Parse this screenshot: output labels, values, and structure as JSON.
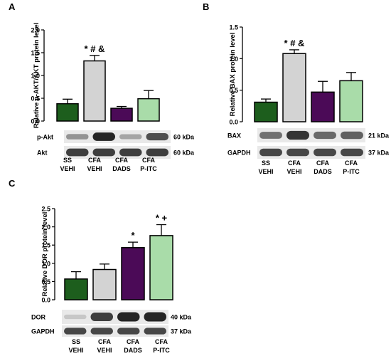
{
  "colors": {
    "ss": "#1d5e1d",
    "cfa": "#d3d3d3",
    "dads": "#4b0a57",
    "pitc": "#a9dca9",
    "blot_bg": "#e9e9e9",
    "band": "#1a1a1a"
  },
  "chart_data": [
    {
      "panel": "A",
      "type": "bar",
      "ylabel": "Relative p-AKT/AKT protein level",
      "ylim": [
        0,
        2.0
      ],
      "yticks": [
        "0.0",
        "0.5",
        "1.0",
        "1.5",
        "2.0"
      ],
      "categories": [
        {
          "line1": "SS",
          "line2": "VEHI"
        },
        {
          "line1": "CFA",
          "line2": "VEHI"
        },
        {
          "line1": "CFA",
          "line2": "DADS"
        },
        {
          "line1": "CFA",
          "line2": "P-ITC"
        }
      ],
      "values": [
        0.38,
        1.32,
        0.28,
        0.49
      ],
      "errors": [
        0.1,
        0.12,
        0.04,
        0.18
      ],
      "annotations": [
        "",
        "* # &",
        "",
        ""
      ],
      "blots": [
        {
          "label": "p-Akt",
          "kda": "60 kDa",
          "intensity": [
            0.35,
            1.0,
            0.25,
            0.75
          ]
        },
        {
          "label": "Akt",
          "kda": "60 kDa",
          "intensity": [
            0.85,
            0.85,
            0.85,
            0.85
          ]
        }
      ]
    },
    {
      "panel": "B",
      "type": "bar",
      "ylabel": "Relative BAX protein level",
      "ylim": [
        0,
        1.5
      ],
      "yticks": [
        "0.0",
        "0.5",
        "1.0",
        "1.5"
      ],
      "categories": [
        {
          "line1": "SS",
          "line2": "VEHI"
        },
        {
          "line1": "CFA",
          "line2": "VEHI"
        },
        {
          "line1": "CFA",
          "line2": "DADS"
        },
        {
          "line1": "CFA",
          "line2": "P-ITC"
        }
      ],
      "values": [
        0.31,
        1.08,
        0.47,
        0.65
      ],
      "errors": [
        0.05,
        0.06,
        0.17,
        0.13
      ],
      "annotations": [
        "",
        "* # &",
        "",
        ""
      ],
      "blots": [
        {
          "label": "BAX",
          "kda": "21 kDa",
          "intensity": [
            0.55,
            0.9,
            0.6,
            0.65
          ]
        },
        {
          "label": "GAPDH",
          "kda": "37 kDa",
          "intensity": [
            0.8,
            0.8,
            0.8,
            0.8
          ]
        }
      ]
    },
    {
      "panel": "C",
      "type": "bar",
      "ylabel": "Relative DOR protein level",
      "ylim": [
        0,
        2.5
      ],
      "yticks": [
        "0.0",
        "0.5",
        "1.0",
        "1.5",
        "2.0",
        "2.5"
      ],
      "categories": [
        {
          "line1": "SS",
          "line2": "VEHI"
        },
        {
          "line1": "CFA",
          "line2": "VEHI"
        },
        {
          "line1": "CFA",
          "line2": "DADS"
        },
        {
          "line1": "CFA",
          "line2": "P-ITC"
        }
      ],
      "values": [
        0.57,
        0.83,
        1.43,
        1.76
      ],
      "errors": [
        0.2,
        0.15,
        0.15,
        0.3
      ],
      "annotations": [
        "",
        "",
        "*",
        "* +"
      ],
      "blots": [
        {
          "label": "DOR",
          "kda": "40 kDa",
          "intensity": [
            0.05,
            0.85,
            1.0,
            1.0
          ]
        },
        {
          "label": "GAPDH",
          "kda": "37 kDa",
          "intensity": [
            0.8,
            0.8,
            0.8,
            0.8
          ]
        }
      ]
    }
  ]
}
